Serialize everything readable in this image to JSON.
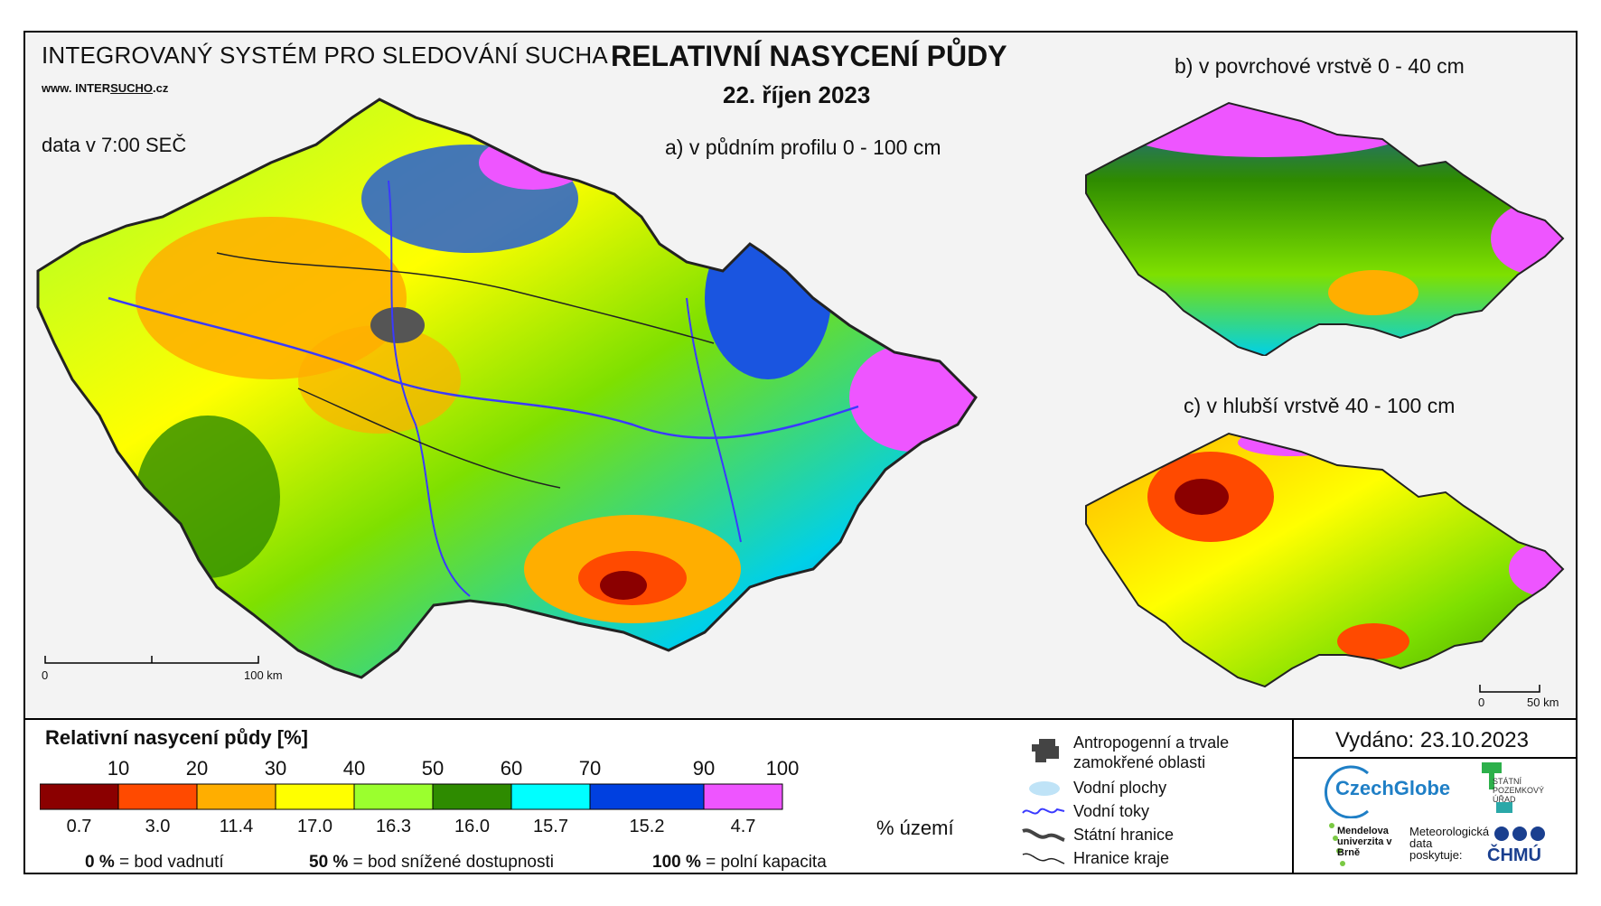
{
  "header": {
    "system_title": "INTEGROVANÝ SYSTÉM PRO SLEDOVÁNÍ SUCHA",
    "website_prefix": "www. INTER",
    "website_mid": "SUCHO",
    "website_suffix": ".cz",
    "data_time": "data v 7:00 SEČ",
    "main_title": "RELATIVNÍ NASYCENÍ PŮDY",
    "date": "22. říjen 2023"
  },
  "maps": {
    "a_label": "a) v půdním profilu 0 - 100 cm",
    "b_label": "b) v povrchové vrstvě 0 - 40 cm",
    "c_label": "c) v hlubší vrstvě 40 - 100 cm",
    "scale_a_start": "0",
    "scale_a_end": "100 km",
    "scale_c_start": "0",
    "scale_c_end": "50 km"
  },
  "legend": {
    "title": "Relativní nasycení půdy [%]",
    "ticks": [
      "10",
      "20",
      "30",
      "40",
      "50",
      "60",
      "70",
      "90",
      "100"
    ],
    "classes": [
      {
        "color": "#8b0000",
        "share": "0.7"
      },
      {
        "color": "#ff4a00",
        "share": "3.0"
      },
      {
        "color": "#ffae00",
        "share": "11.4"
      },
      {
        "color": "#ffff00",
        "share": "17.0"
      },
      {
        "color": "#9bff2e",
        "share": "16.3"
      },
      {
        "color": "#2e8b00",
        "share": "16.0"
      },
      {
        "color": "#00ffff",
        "share": "15.7"
      },
      {
        "color": "#0040e0",
        "share": "15.2"
      },
      {
        "color": "#ee55ff",
        "share": "4.7"
      }
    ],
    "share_unit": "% území",
    "note_0_value": "0 %",
    "note_0_text": "= bod vadnutí",
    "note_50_value": "50 %",
    "note_50_text": "= bod snížené dostupnosti",
    "note_100_value": "100 %",
    "note_100_text": "= polní kapacita"
  },
  "symbols": {
    "anthropogenic": "Antropogenní a trvale",
    "anthropogenic2": "zamokřené oblasti",
    "water_bodies": "Vodní plochy",
    "rivers": "Vodní toky",
    "state_border": "Státní hranice",
    "region_border": "Hranice kraje"
  },
  "credits": {
    "issued": "Vydáno: 23.10.2023",
    "czechglobe": "CzechGlobe",
    "spu": "STÁTNÍ POZEMKOVÝ ÚŘAD",
    "mendel": "Mendelova univerzita v Brně",
    "met_line1": "Meteorologická",
    "met_line2": "data",
    "met_line3": "poskytuje:",
    "chmu": "ČHMÚ"
  },
  "colors": {
    "river": "#3a3aff",
    "border": "#222222"
  }
}
